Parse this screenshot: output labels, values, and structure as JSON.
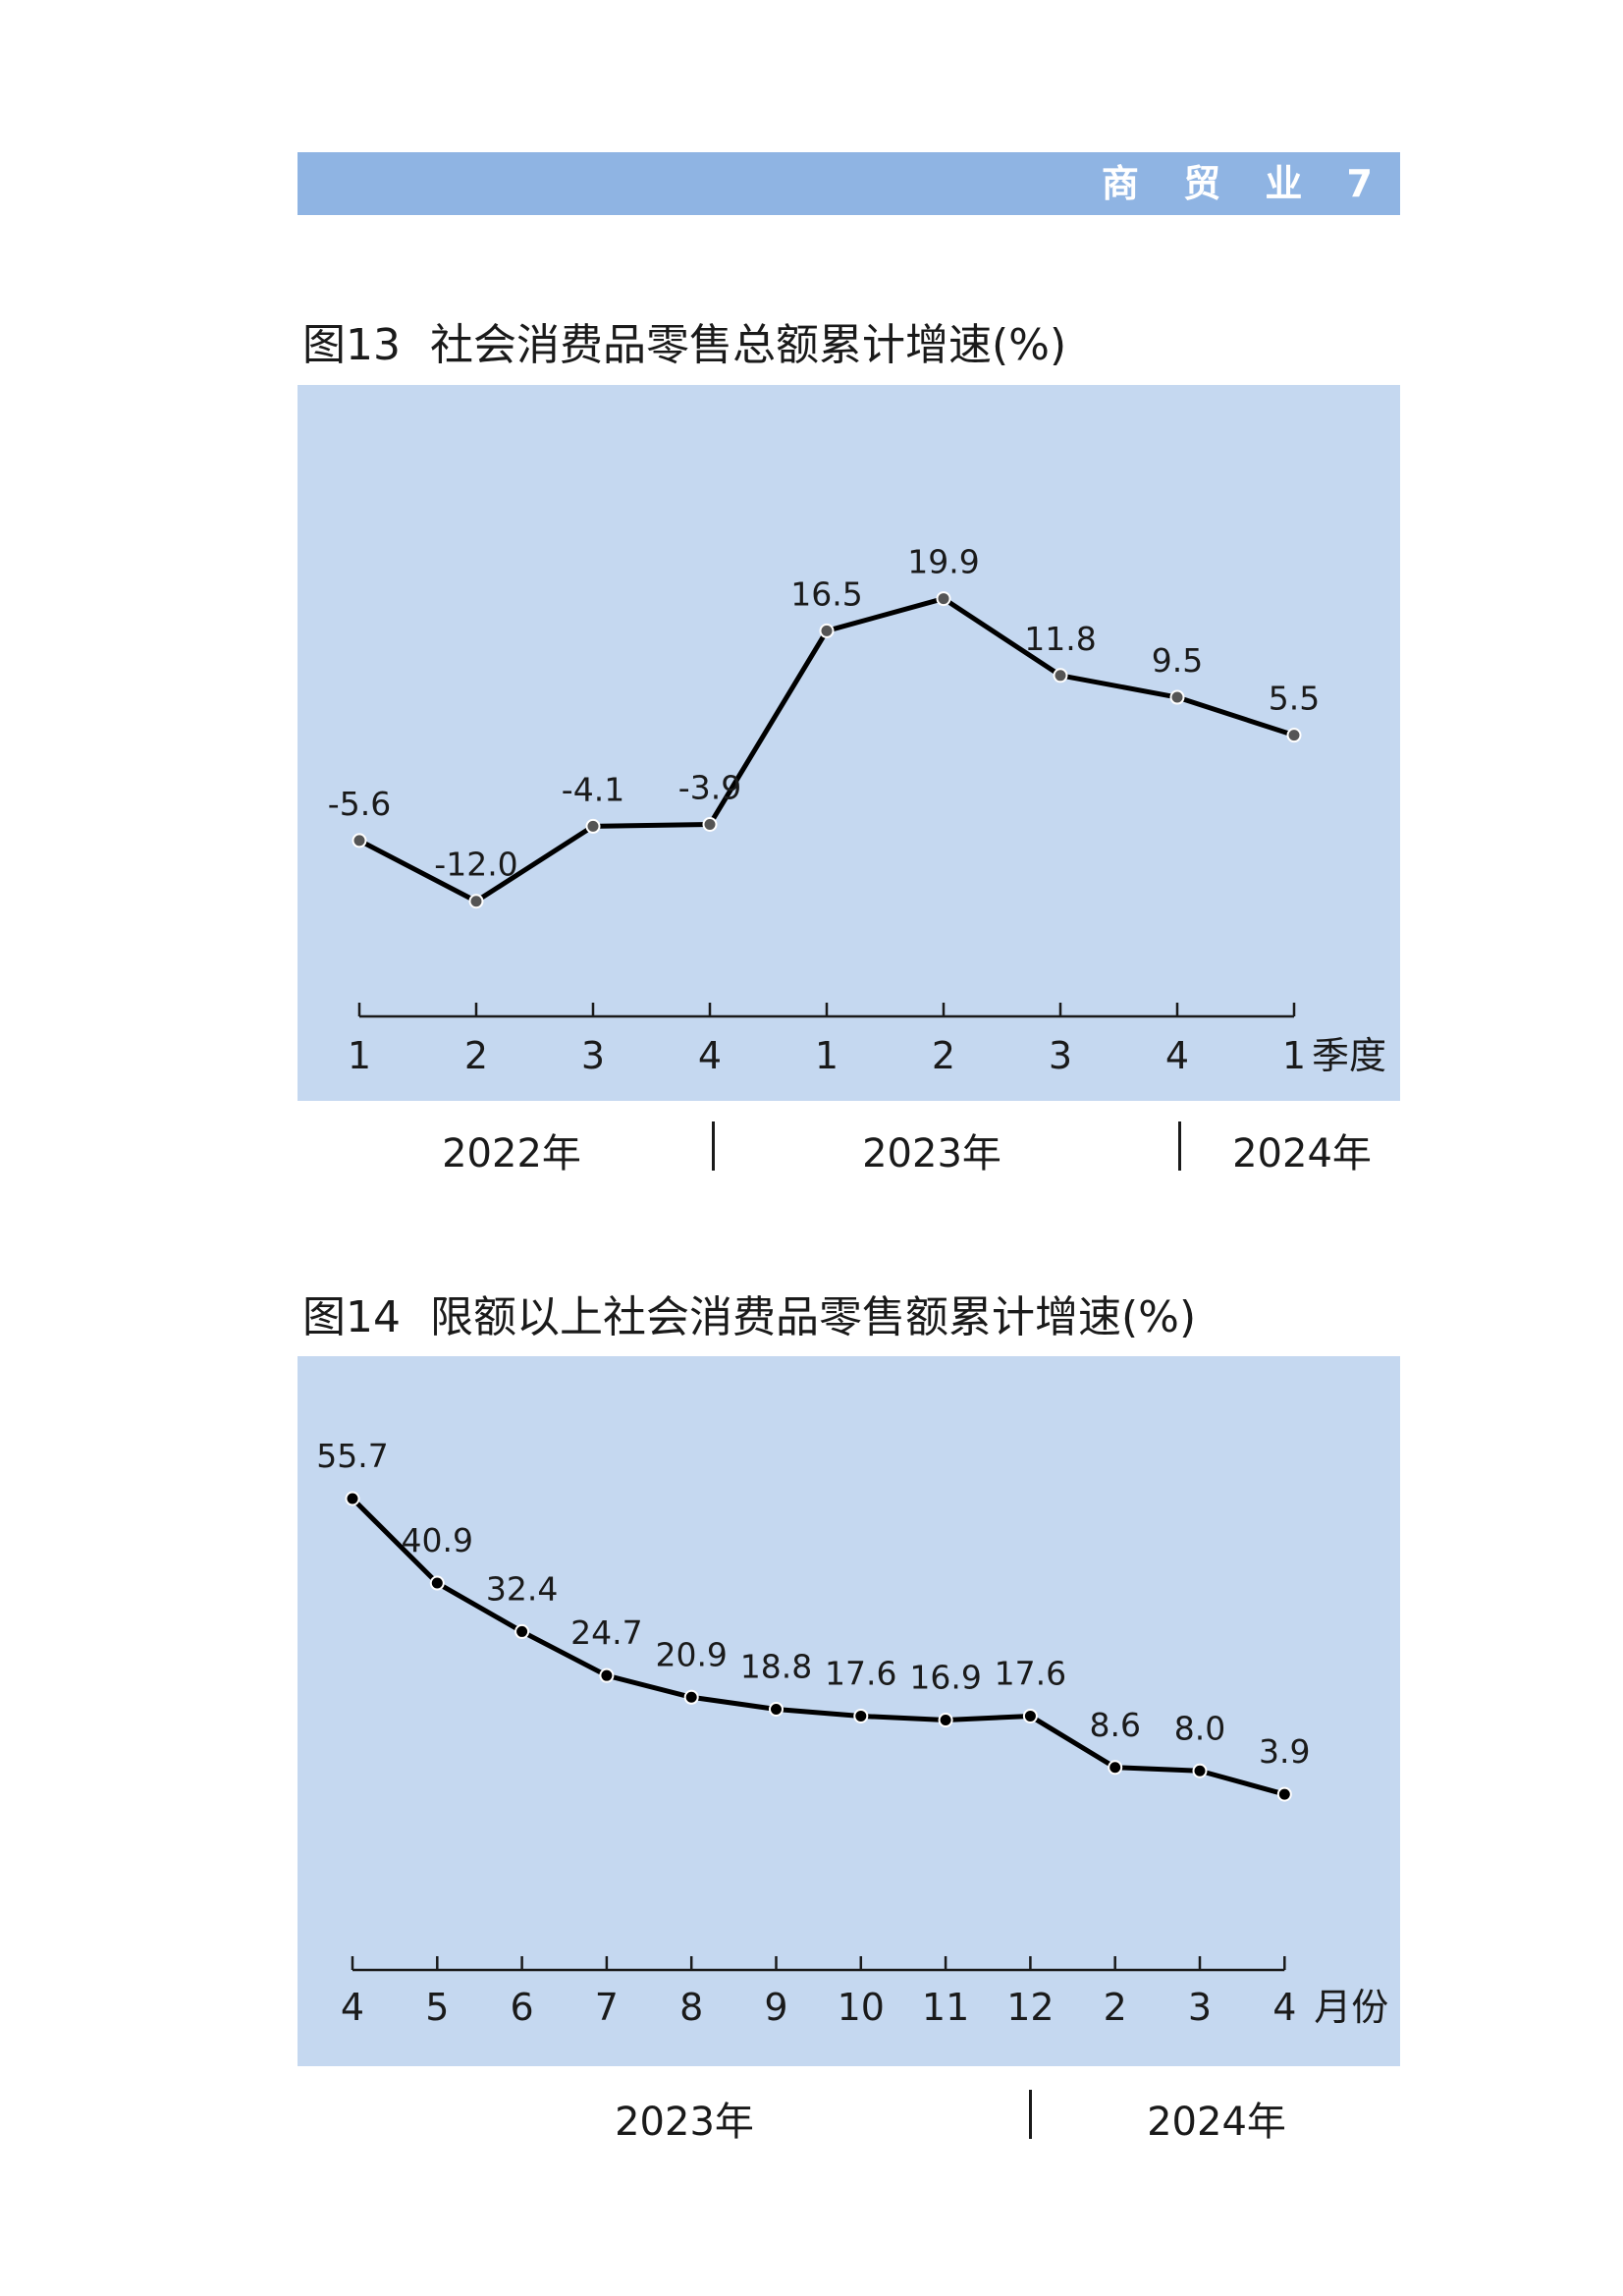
{
  "header": {
    "label": "商 贸 业 7"
  },
  "chart_data": [
    {
      "type": "line",
      "title_number": "图13",
      "title": "社会消费品零售总额累计增速(%)",
      "categories": [
        "1",
        "2",
        "3",
        "4",
        "1",
        "2",
        "3",
        "4",
        "1"
      ],
      "values": [
        -5.6,
        -12.0,
        -4.1,
        -3.9,
        16.5,
        19.9,
        11.8,
        9.5,
        5.5
      ],
      "value_labels": [
        "-5.6",
        "-12.0",
        "-4.1",
        "-3.9",
        "16.5",
        "19.9",
        "11.8",
        "9.5",
        "5.5"
      ],
      "x_unit": "季度",
      "years": [
        {
          "label": "2022年",
          "span": [
            0,
            3
          ]
        },
        {
          "label": "2023年",
          "span": [
            4,
            7
          ]
        },
        {
          "label": "2024年",
          "span": [
            8,
            8
          ]
        }
      ],
      "ylim": [
        -20,
        30
      ],
      "grid": false,
      "colors": {
        "line": "#000000",
        "marker": "#555555",
        "background": "#c5d8f0"
      }
    },
    {
      "type": "line",
      "title_number": "图14",
      "title": "限额以上社会消费品零售额累计增速(%)",
      "categories": [
        "4",
        "5",
        "6",
        "7",
        "8",
        "9",
        "10",
        "11",
        "12",
        "2",
        "3",
        "4"
      ],
      "values": [
        55.7,
        40.9,
        32.4,
        24.7,
        20.9,
        18.8,
        17.6,
        16.9,
        17.6,
        8.6,
        8.0,
        3.9
      ],
      "value_labels": [
        "55.7",
        "40.9",
        "32.4",
        "24.7",
        "20.9",
        "18.8",
        "17.6",
        "16.9",
        "17.6",
        "8.6",
        "8.0",
        "3.9"
      ],
      "x_unit": "月份",
      "years": [
        {
          "label": "2023年",
          "span": [
            0,
            8
          ]
        },
        {
          "label": "2024年",
          "span": [
            9,
            11
          ]
        }
      ],
      "ylim": [
        -20,
        60
      ],
      "grid": false,
      "colors": {
        "line": "#000000",
        "marker": "#000000",
        "background": "#c5d8f0"
      }
    }
  ]
}
